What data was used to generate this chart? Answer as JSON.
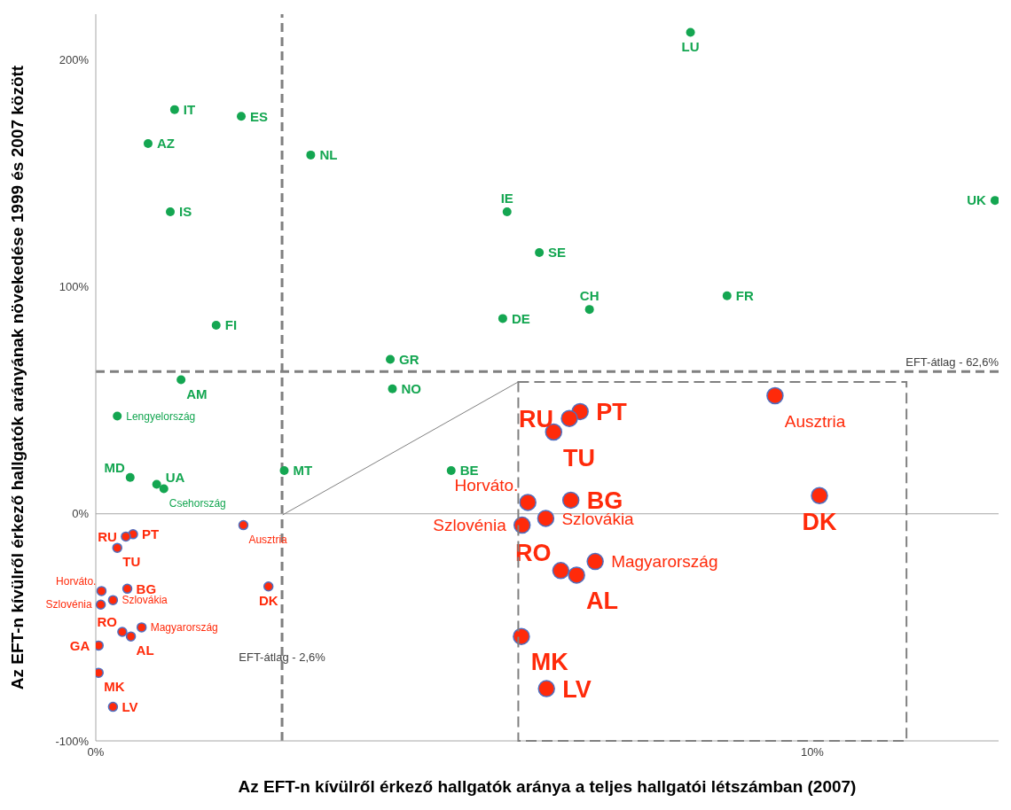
{
  "chart_data": {
    "type": "scatter",
    "xlabel": "Az EFT-n kívülről érkező hallgatók aránya a teljes hallgatói létszámban (2007)",
    "ylabel": "Az EFT-n kívülről érkező hallgatók arányának növekedése 1999 és 2007 között",
    "xlim": [
      0,
      12.6
    ],
    "xticks": [
      {
        "value": 0,
        "label": "0%"
      },
      {
        "value": 10,
        "label": "10%"
      }
    ],
    "ylim": [
      -100,
      220
    ],
    "yticks": [
      {
        "value": -100,
        "label": "-100%"
      },
      {
        "value": 0,
        "label": "0%"
      },
      {
        "value": 100,
        "label": "100%"
      },
      {
        "value": 200,
        "label": "200%"
      }
    ],
    "marker": "circle",
    "series": [
      {
        "color": "#14a651",
        "x": [
          8.3,
          1.1,
          2.03,
          0.73,
          3.0,
          1.04,
          5.74,
          12.55,
          6.19,
          6.89,
          8.81,
          5.68,
          1.68,
          4.11,
          1.19,
          4.14,
          0.3,
          0.48,
          2.63,
          4.96,
          0.85,
          0.95
        ],
        "values": [
          212,
          178,
          175,
          163,
          158,
          133,
          133,
          138,
          115,
          90,
          96,
          86,
          83,
          68,
          59,
          55,
          43,
          16,
          19,
          19,
          13,
          11
        ]
      },
      {
        "color": "#ff2a0a",
        "x": [
          2.06,
          0.52,
          0.42,
          0.3,
          0.08,
          0.44,
          0.07,
          0.24,
          2.41,
          0.37,
          0.64,
          0.49,
          0.04,
          0.04,
          0.24
        ],
        "values": [
          -5,
          -9,
          -10,
          -15,
          -34,
          -33,
          -40,
          -38,
          -32,
          -52,
          -50,
          -54,
          -58,
          -70,
          -85
        ]
      },
      {
        "color": "#ff2a0a",
        "x": [
          6.76,
          6.61,
          6.39,
          9.48,
          6.03,
          6.63,
          10.1,
          6.28,
          5.95,
          6.49,
          6.97,
          6.71,
          5.94,
          6.29
        ],
        "values": [
          45,
          42,
          36,
          52,
          5,
          6,
          8,
          -2,
          -5,
          -25,
          -21,
          -27,
          -54,
          -77
        ]
      }
    ],
    "ref_lines": [
      {
        "axis": "x",
        "value": 2.6,
        "label": "EFT-átlag - 2,6%",
        "color": "#808080",
        "line_style": "dashed"
      },
      {
        "axis": "y",
        "value": 62.6,
        "label": "EFT-átlag - 62,6%",
        "color": "#808080",
        "line_style": "dashed"
      },
      {
        "axis": "y",
        "value": 0,
        "color": "#a6a6a6",
        "line_style": "solid"
      }
    ],
    "annotations": [
      {
        "text": "LU",
        "x": 8.3,
        "y": 212
      },
      {
        "text": "IT",
        "x": 1.1,
        "y": 178
      },
      {
        "text": "ES",
        "x": 2.03,
        "y": 175
      },
      {
        "text": "AZ",
        "x": 0.73,
        "y": 163
      },
      {
        "text": "NL",
        "x": 3.0,
        "y": 158
      },
      {
        "text": "IS",
        "x": 1.04,
        "y": 133
      },
      {
        "text": "IE",
        "x": 5.74,
        "y": 133
      },
      {
        "text": "UK",
        "x": 12.55,
        "y": 138
      },
      {
        "text": "SE",
        "x": 6.19,
        "y": 115
      },
      {
        "text": "CH",
        "x": 6.89,
        "y": 90
      },
      {
        "text": "FR",
        "x": 8.81,
        "y": 96
      },
      {
        "text": "DE",
        "x": 5.68,
        "y": 86
      },
      {
        "text": "FI",
        "x": 1.68,
        "y": 83
      },
      {
        "text": "GR",
        "x": 4.11,
        "y": 68
      },
      {
        "text": "AM",
        "x": 1.19,
        "y": 59
      },
      {
        "text": "NO",
        "x": 4.14,
        "y": 55
      },
      {
        "text": "Lengyelország",
        "x": 0.3,
        "y": 43
      },
      {
        "text": "MD",
        "x": 0.48,
        "y": 16
      },
      {
        "text": "MT",
        "x": 2.63,
        "y": 19
      },
      {
        "text": "BE",
        "x": 4.96,
        "y": 19
      },
      {
        "text": "UA",
        "x": 0.85,
        "y": 13
      },
      {
        "text": "Csehország",
        "x": 0.95,
        "y": 11
      },
      {
        "text": "Ausztria",
        "x": 2.06,
        "y": -5
      },
      {
        "text": "PT",
        "x": 0.52,
        "y": -9
      },
      {
        "text": "RU",
        "x": 0.42,
        "y": -10
      },
      {
        "text": "TU",
        "x": 0.3,
        "y": -15
      },
      {
        "text": "Horváto.",
        "x": 0.08,
        "y": -34
      },
      {
        "text": "BG",
        "x": 0.44,
        "y": -33
      },
      {
        "text": "Szlovénia",
        "x": 0.07,
        "y": -40
      },
      {
        "text": "Szlovákia",
        "x": 0.24,
        "y": -38
      },
      {
        "text": "DK",
        "x": 2.41,
        "y": -32
      },
      {
        "text": "RO",
        "x": 0.37,
        "y": -52
      },
      {
        "text": "Magyarország",
        "x": 0.64,
        "y": -50
      },
      {
        "text": "AL",
        "x": 0.49,
        "y": -54
      },
      {
        "text": "GA",
        "x": 0.04,
        "y": -58
      },
      {
        "text": "MK",
        "x": 0.04,
        "y": -70
      },
      {
        "text": "LV",
        "x": 0.24,
        "y": -85
      },
      {
        "text": "PT",
        "x": 6.76,
        "y": 45
      },
      {
        "text": "RU",
        "x": 6.61,
        "y": 42
      },
      {
        "text": "TU",
        "x": 6.39,
        "y": 36
      },
      {
        "text": "Ausztria",
        "x": 9.48,
        "y": 52
      },
      {
        "text": "Horváto.",
        "x": 6.03,
        "y": 5
      },
      {
        "text": "BG",
        "x": 6.63,
        "y": 6
      },
      {
        "text": "DK",
        "x": 10.1,
        "y": 8
      },
      {
        "text": "Szlovákia",
        "x": 6.28,
        "y": -2
      },
      {
        "text": "Szlovénia",
        "x": 5.95,
        "y": -5
      },
      {
        "text": "RO",
        "x": 6.49,
        "y": -25
      },
      {
        "text": "Magyarország",
        "x": 6.97,
        "y": -21
      },
      {
        "text": "AL",
        "x": 6.71,
        "y": -27
      },
      {
        "text": "MK",
        "x": 5.94,
        "y": -54
      },
      {
        "text": "LV",
        "x": 6.29,
        "y": -77
      }
    ]
  }
}
